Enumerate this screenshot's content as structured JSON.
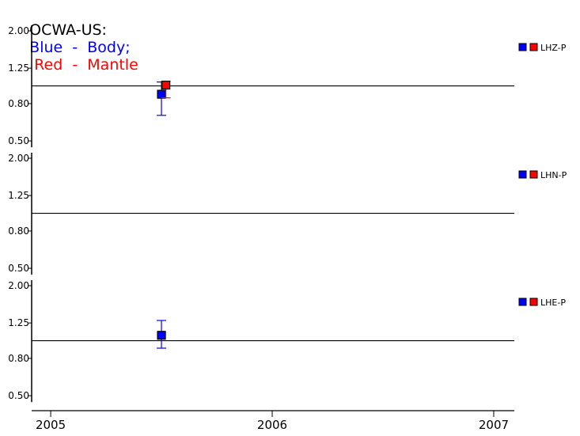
{
  "title": {
    "station": "OCWA-US:",
    "blue_part": "Blue  -  Body;",
    "red_part": "Red  -  Mantle"
  },
  "colors": {
    "body": "#0000ff",
    "mantle": "#ff0000",
    "axis": "#000000"
  },
  "chart_data": [
    {
      "type": "scatter",
      "panel_label": "LHZ-P",
      "yscale": "log",
      "ylim": [
        0.5,
        2.0
      ],
      "yticks": [
        "2.00",
        "1.25",
        "0.80",
        "0.50"
      ],
      "reference_line": 1.0,
      "series": [
        {
          "name": "Body",
          "color": "#0000ff",
          "points": [
            {
              "x": 2005.5,
              "y": 0.9,
              "ylow": 0.69,
              "yhigh": 1.05
            }
          ]
        },
        {
          "name": "Mantle",
          "color": "#ff0000",
          "points": [
            {
              "x": 2005.52,
              "y": 1.01,
              "ylow": 0.86,
              "yhigh": 1.06
            }
          ]
        }
      ]
    },
    {
      "type": "scatter",
      "panel_label": "LHN-P",
      "yscale": "log",
      "ylim": [
        0.5,
        2.0
      ],
      "yticks": [
        "2.00",
        "1.25",
        "0.80",
        "0.50"
      ],
      "reference_line": 1.0,
      "series": [
        {
          "name": "Body",
          "color": "#0000ff",
          "points": []
        },
        {
          "name": "Mantle",
          "color": "#ff0000",
          "points": []
        }
      ]
    },
    {
      "type": "scatter",
      "panel_label": "LHE-P",
      "yscale": "log",
      "ylim": [
        0.5,
        2.0
      ],
      "yticks": [
        "2.00",
        "1.25",
        "0.80",
        "0.50"
      ],
      "reference_line": 1.0,
      "series": [
        {
          "name": "Body",
          "color": "#0000ff",
          "points": [
            {
              "x": 2005.5,
              "y": 1.07,
              "ylow": 0.91,
              "yhigh": 1.29
            }
          ]
        },
        {
          "name": "Mantle",
          "color": "#ff0000",
          "points": []
        }
      ]
    }
  ],
  "xaxis": {
    "xlim": [
      2004.914,
      2007.093
    ],
    "ticks": [
      "2005",
      "2006",
      "2007"
    ]
  }
}
